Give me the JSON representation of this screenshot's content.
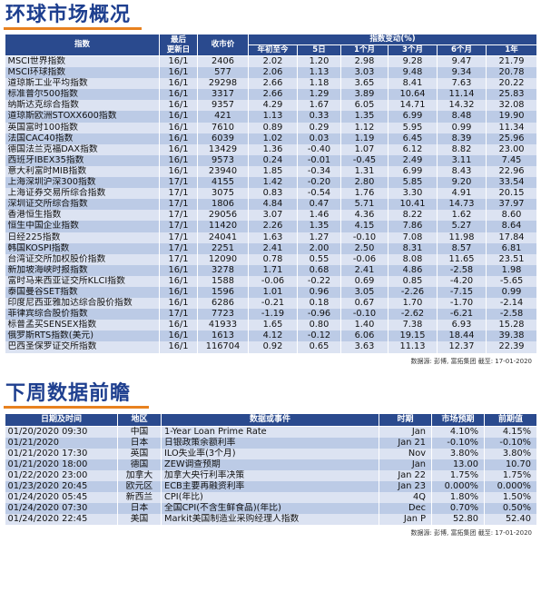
{
  "markets": {
    "title": "环球市场概况",
    "headers": {
      "index": "指数",
      "last_update": "最后\n更新日",
      "close": "收市价",
      "change_group": "指数变动(%)",
      "periods": [
        "年初至今",
        "5日",
        "1个月",
        "3个月",
        "6个月",
        "1年"
      ]
    },
    "rows": [
      {
        "name": "MSCI世界指数",
        "date": "16/1",
        "close": "2406",
        "ytd": "2.02",
        "d5": "1.20",
        "m1": "2.98",
        "m3": "9.28",
        "m6": "9.47",
        "y1": "21.79"
      },
      {
        "name": "MSCI环球指数",
        "date": "16/1",
        "close": "577",
        "ytd": "2.06",
        "d5": "1.13",
        "m1": "3.03",
        "m3": "9.48",
        "m6": "9.34",
        "y1": "20.78"
      },
      {
        "name": "道琼斯工业平均指数",
        "date": "16/1",
        "close": "29298",
        "ytd": "2.66",
        "d5": "1.18",
        "m1": "3.65",
        "m3": "8.41",
        "m6": "7.63",
        "y1": "20.22"
      },
      {
        "name": "标准普尔500指数",
        "date": "16/1",
        "close": "3317",
        "ytd": "2.66",
        "d5": "1.29",
        "m1": "3.89",
        "m3": "10.64",
        "m6": "11.14",
        "y1": "25.83"
      },
      {
        "name": "纳斯达克综合指数",
        "date": "16/1",
        "close": "9357",
        "ytd": "4.29",
        "d5": "1.67",
        "m1": "6.05",
        "m3": "14.71",
        "m6": "14.32",
        "y1": "32.08"
      },
      {
        "name": "道琼斯欧洲STOXX600指数",
        "date": "16/1",
        "close": "421",
        "ytd": "1.13",
        "d5": "0.33",
        "m1": "1.35",
        "m3": "6.99",
        "m6": "8.48",
        "y1": "19.90"
      },
      {
        "name": "英国富时100指数",
        "date": "16/1",
        "close": "7610",
        "ytd": "0.89",
        "d5": "0.29",
        "m1": "1.12",
        "m3": "5.95",
        "m6": "0.99",
        "y1": "11.34"
      },
      {
        "name": "法国CAC40指数",
        "date": "16/1",
        "close": "6039",
        "ytd": "1.02",
        "d5": "0.03",
        "m1": "1.19",
        "m3": "6.45",
        "m6": "8.39",
        "y1": "25.96"
      },
      {
        "name": "德国法兰克福DAX指数",
        "date": "16/1",
        "close": "13429",
        "ytd": "1.36",
        "d5": "-0.40",
        "m1": "1.07",
        "m3": "6.12",
        "m6": "8.82",
        "y1": "23.00"
      },
      {
        "name": "西班牙IBEX35指数",
        "date": "16/1",
        "close": "9573",
        "ytd": "0.24",
        "d5": "-0.01",
        "m1": "-0.45",
        "m3": "2.49",
        "m6": "3.11",
        "y1": "7.45"
      },
      {
        "name": "意大利富时MIB指数",
        "date": "16/1",
        "close": "23940",
        "ytd": "1.85",
        "d5": "-0.34",
        "m1": "1.31",
        "m3": "6.99",
        "m6": "8.43",
        "y1": "22.96"
      },
      {
        "name": "上海深圳沪深300指数",
        "date": "17/1",
        "close": "4155",
        "ytd": "1.42",
        "d5": "-0.20",
        "m1": "2.80",
        "m3": "5.85",
        "m6": "9.20",
        "y1": "33.54"
      },
      {
        "name": "上海证券交易所综合指数",
        "date": "17/1",
        "close": "3075",
        "ytd": "0.83",
        "d5": "-0.54",
        "m1": "1.76",
        "m3": "3.30",
        "m6": "4.91",
        "y1": "20.15"
      },
      {
        "name": "深圳证交所综合指数",
        "date": "17/1",
        "close": "1806",
        "ytd": "4.84",
        "d5": "0.47",
        "m1": "5.71",
        "m3": "10.41",
        "m6": "14.73",
        "y1": "37.97"
      },
      {
        "name": "香港恒生指数",
        "date": "17/1",
        "close": "29056",
        "ytd": "3.07",
        "d5": "1.46",
        "m1": "4.36",
        "m3": "8.22",
        "m6": "1.62",
        "y1": "8.60"
      },
      {
        "name": "恒生中国企业指数",
        "date": "17/1",
        "close": "11420",
        "ytd": "2.26",
        "d5": "1.35",
        "m1": "4.15",
        "m3": "7.86",
        "m6": "5.27",
        "y1": "8.64"
      },
      {
        "name": "日经225指数",
        "date": "17/1",
        "close": "24041",
        "ytd": "1.63",
        "d5": "1.27",
        "m1": "-0.10",
        "m3": "7.08",
        "m6": "11.98",
        "y1": "17.84"
      },
      {
        "name": "韩国KOSPI指数",
        "date": "17/1",
        "close": "2251",
        "ytd": "2.41",
        "d5": "2.00",
        "m1": "2.50",
        "m3": "8.31",
        "m6": "8.57",
        "y1": "6.81"
      },
      {
        "name": "台湾证交所加权股价指数",
        "date": "17/1",
        "close": "12090",
        "ytd": "0.78",
        "d5": "0.55",
        "m1": "-0.06",
        "m3": "8.08",
        "m6": "11.65",
        "y1": "23.51"
      },
      {
        "name": "新加坡海峡时报指数",
        "date": "16/1",
        "close": "3278",
        "ytd": "1.71",
        "d5": "0.68",
        "m1": "2.41",
        "m3": "4.86",
        "m6": "-2.58",
        "y1": "1.98"
      },
      {
        "name": "富时马来西亚证交所KLCI指数",
        "date": "16/1",
        "close": "1588",
        "ytd": "-0.06",
        "d5": "-0.22",
        "m1": "0.69",
        "m3": "0.85",
        "m6": "-4.20",
        "y1": "-5.65"
      },
      {
        "name": "泰国曼谷SET指数",
        "date": "16/1",
        "close": "1596",
        "ytd": "1.01",
        "d5": "0.96",
        "m1": "3.05",
        "m3": "-2.26",
        "m6": "-7.15",
        "y1": "0.99"
      },
      {
        "name": "印度尼西亚雅加达综合股价指数",
        "date": "16/1",
        "close": "6286",
        "ytd": "-0.21",
        "d5": "0.18",
        "m1": "0.67",
        "m3": "1.70",
        "m6": "-1.70",
        "y1": "-2.14"
      },
      {
        "name": "菲律宾综合股价指数",
        "date": "17/1",
        "close": "7723",
        "ytd": "-1.19",
        "d5": "-0.96",
        "m1": "-0.10",
        "m3": "-2.62",
        "m6": "-6.21",
        "y1": "-2.58"
      },
      {
        "name": "标普孟买SENSEX指数",
        "date": "16/1",
        "close": "41933",
        "ytd": "1.65",
        "d5": "0.80",
        "m1": "1.40",
        "m3": "7.38",
        "m6": "6.93",
        "y1": "15.28"
      },
      {
        "name": "俄罗斯RTS指数(美元)",
        "date": "16/1",
        "close": "1613",
        "ytd": "4.12",
        "d5": "-0.12",
        "m1": "6.06",
        "m3": "19.15",
        "m6": "18.44",
        "y1": "39.38"
      },
      {
        "name": "巴西圣保罗证交所指数",
        "date": "16/1",
        "close": "116704",
        "ytd": "0.92",
        "d5": "0.65",
        "m1": "3.63",
        "m3": "11.13",
        "m6": "12.37",
        "y1": "22.39"
      }
    ],
    "source": "数据源: 彭博, 富拓集团 截至: 17-01-2020"
  },
  "calendar": {
    "title": "下周数据前瞻",
    "headers": {
      "datetime": "日期及时间",
      "region": "地区",
      "event": "数据或事件",
      "period": "时期",
      "forecast": "市场预期",
      "previous": "前期值"
    },
    "rows": [
      {
        "datetime": "01/20/2020 09:30",
        "region": "中国",
        "event": "1-Year Loan Prime Rate",
        "period": "Jan",
        "forecast": "4.10%",
        "previous": "4.15%"
      },
      {
        "datetime": "01/21/2020",
        "region": "日本",
        "event": "日银政策余额利率",
        "period": "Jan 21",
        "forecast": "-0.10%",
        "previous": "-0.10%"
      },
      {
        "datetime": "01/21/2020 17:30",
        "region": "英国",
        "event": "ILO失业率(3个月)",
        "period": "Nov",
        "forecast": "3.80%",
        "previous": "3.80%"
      },
      {
        "datetime": "01/21/2020 18:00",
        "region": "德国",
        "event": "ZEW调查预期",
        "period": "Jan",
        "forecast": "13.00",
        "previous": "10.70"
      },
      {
        "datetime": "01/22/2020 23:00",
        "region": "加拿大",
        "event": "加拿大央行利率决策",
        "period": "Jan 22",
        "forecast": "1.75%",
        "previous": "1.75%"
      },
      {
        "datetime": "01/23/2020 20:45",
        "region": "欧元区",
        "event": "ECB主要再融资利率",
        "period": "Jan 23",
        "forecast": "0.000%",
        "previous": "0.000%"
      },
      {
        "datetime": "01/24/2020 05:45",
        "region": "新西兰",
        "event": "CPI(年比)",
        "period": "4Q",
        "forecast": "1.80%",
        "previous": "1.50%"
      },
      {
        "datetime": "01/24/2020 07:30",
        "region": "日本",
        "event": "全国CPI(不含生鲜食品)(年比)",
        "period": "Dec",
        "forecast": "0.70%",
        "previous": "0.50%"
      },
      {
        "datetime": "01/24/2020 22:45",
        "region": "美国",
        "event": "Markit美国制造业采购经理人指数",
        "period": "Jan P",
        "forecast": "52.80",
        "previous": "52.40"
      }
    ],
    "source": "数据源: 彭博, 富拓集团 截至: 17-01-2020"
  }
}
